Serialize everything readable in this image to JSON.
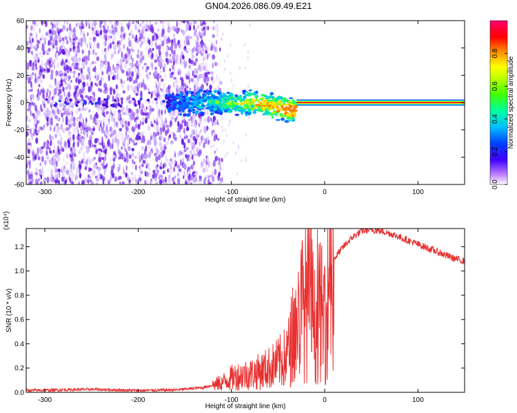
{
  "figure_title": "GN04.2026.086.09.49.E21",
  "chart_data": [
    {
      "type": "heatmap",
      "title": "GN04.2026.086.09.49.E21",
      "xlabel": "Height of straight line (km)",
      "ylabel": "Frequency (Hz)",
      "xlim": [
        -320,
        150
      ],
      "ylim": [
        -60,
        60
      ],
      "x_ticks": [
        -300,
        -200,
        -100,
        0,
        100
      ],
      "y_ticks": [
        -60,
        -40,
        -20,
        0,
        20,
        40,
        60
      ],
      "colorbar": {
        "label": "Normalized spectral amplitude",
        "range": [
          0,
          1
        ],
        "ticks": [
          0.0,
          0.2,
          0.4,
          0.6,
          0.8
        ],
        "tick_labels": [
          "0.0",
          "0.2",
          "0.4",
          "0.6",
          "0.8"
        ],
        "colors": [
          "#ffffff",
          "#a040ff",
          "#0000ff",
          "#00c8ff",
          "#00ff60",
          "#a0ff00",
          "#ffff00",
          "#ff8000",
          "#ff0000",
          "#ff0080"
        ]
      },
      "features": {
        "noise_region_x": [
          -320,
          -120
        ],
        "signal_band_x": [
          -170,
          -30
        ],
        "signal_band_freq": [
          -10,
          10
        ],
        "carrier_line_x": [
          -30,
          150
        ],
        "carrier_line_freq": 0
      }
    },
    {
      "type": "line",
      "xlabel": "Height of straight line (km)",
      "ylabel": "SNR (10 * v/v)",
      "y_multiplier": "(x10⁴)",
      "xlim": [
        -320,
        150
      ],
      "ylim": [
        0,
        1.35
      ],
      "x_ticks": [
        -300,
        -200,
        -100,
        0,
        100
      ],
      "y_ticks": [
        0.0,
        0.2,
        0.4,
        0.6,
        0.8,
        1.0,
        1.2
      ],
      "y_tick_labels": [
        "0.0",
        "0.2",
        "0.4",
        "0.6",
        "0.8",
        "1.0",
        "1.2"
      ],
      "color": "#e83030",
      "series": [
        {
          "name": "SNR",
          "x": [
            -320,
            -250,
            -200,
            -160,
            -130,
            -110,
            -100,
            -90,
            -80,
            -70,
            -60,
            -50,
            -40,
            -35,
            -30,
            -25,
            -20,
            -15,
            -10,
            -5,
            0,
            5,
            10,
            20,
            30,
            40,
            50,
            60,
            70,
            80,
            90,
            100,
            110,
            120,
            130,
            140,
            150
          ],
          "y": [
            0.015,
            0.025,
            0.015,
            0.02,
            0.04,
            0.08,
            0.12,
            0.14,
            0.15,
            0.17,
            0.2,
            0.24,
            0.3,
            0.45,
            0.55,
            0.7,
            0.75,
            0.8,
            0.5,
            0.7,
            0.55,
            0.95,
            1.1,
            1.2,
            1.28,
            1.33,
            1.34,
            1.33,
            1.31,
            1.28,
            1.25,
            1.22,
            1.19,
            1.16,
            1.13,
            1.1,
            1.08
          ]
        }
      ]
    }
  ]
}
